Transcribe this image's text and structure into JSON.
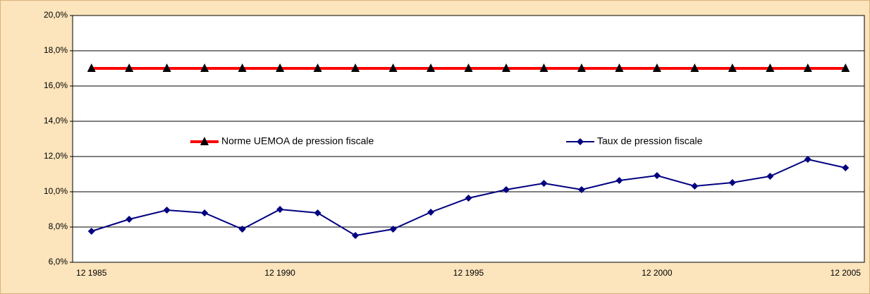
{
  "chart_data": {
    "type": "line",
    "categories": [
      "12 1985",
      null,
      null,
      null,
      null,
      "12 1990",
      null,
      null,
      null,
      null,
      "12 1995",
      null,
      null,
      null,
      null,
      "12 2000",
      null,
      null,
      null,
      null,
      "12 2005"
    ],
    "series": [
      {
        "name": "Norme UEMOA de pression fiscale",
        "color": "#ff0000",
        "marker": "triangle",
        "marker_color": "#000000",
        "values": [
          17,
          17,
          17,
          17,
          17,
          17,
          17,
          17,
          17,
          17,
          17,
          17,
          17,
          17,
          17,
          17,
          17,
          17,
          17,
          17,
          17
        ]
      },
      {
        "name": "Taux de pression fiscale",
        "color": "#000080",
        "marker": "diamond",
        "marker_color": "#000080",
        "values": [
          7.76,
          8.44,
          8.96,
          8.8,
          7.88,
          9.0,
          8.8,
          7.52,
          7.88,
          8.84,
          9.64,
          10.12,
          10.48,
          10.12,
          10.64,
          10.92,
          10.32,
          10.52,
          10.88,
          11.84,
          11.36
        ]
      }
    ],
    "ylim": [
      6,
      20
    ],
    "yticks": [
      {
        "value": 6,
        "label": "6,0%"
      },
      {
        "value": 8,
        "label": "8,0%"
      },
      {
        "value": 10,
        "label": "10,0%"
      },
      {
        "value": 12,
        "label": "12,0%"
      },
      {
        "value": 14,
        "label": "14,0%"
      },
      {
        "value": 16,
        "label": "16,0%"
      },
      {
        "value": 18,
        "label": "18,0%"
      },
      {
        "value": 20,
        "label": "20,0%"
      }
    ],
    "grid": true,
    "legend": "center"
  }
}
